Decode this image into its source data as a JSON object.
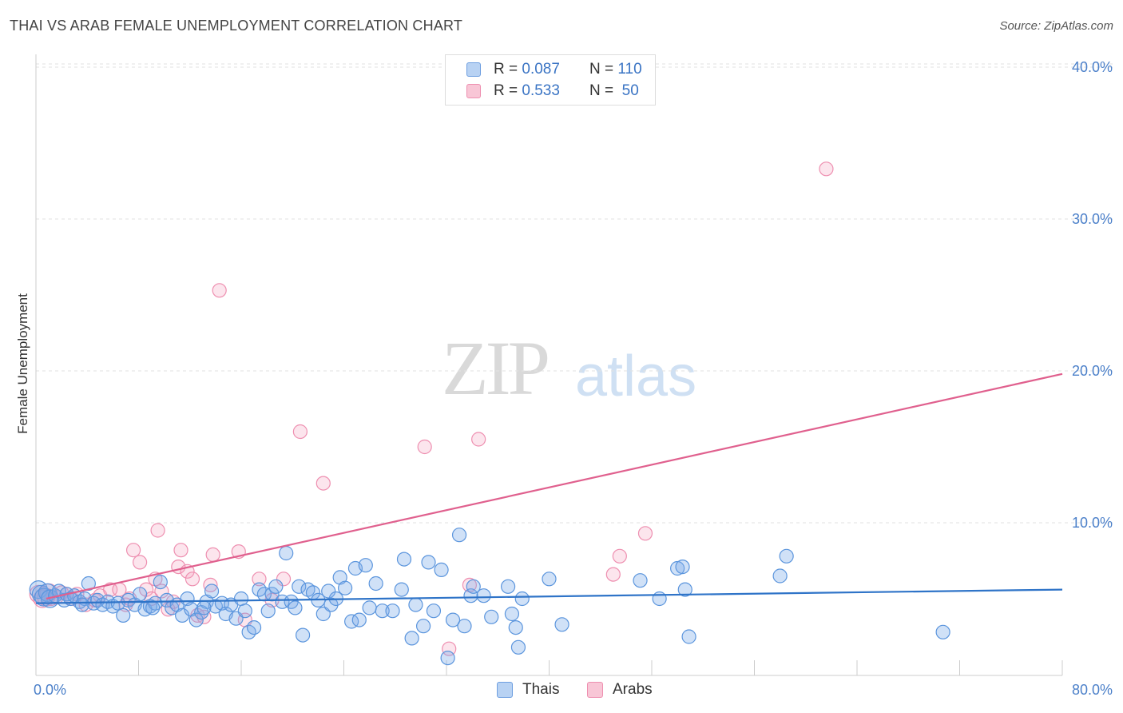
{
  "header": {
    "title": "THAI VS ARAB FEMALE UNEMPLOYMENT CORRELATION CHART",
    "source": "Source: ZipAtlas.com"
  },
  "legend": {
    "thais": {
      "r_label": "R =",
      "r_value": "0.087",
      "n_label": "N =",
      "n_value": "110"
    },
    "arabs": {
      "r_label": "R =",
      "r_value": "0.533",
      "n_label": "N =",
      "n_value": "50"
    }
  },
  "bottom_legend": {
    "thais": "Thais",
    "arabs": "Arabs"
  },
  "watermark": {
    "zip": "ZIP",
    "atlas": "atlas"
  },
  "colors": {
    "thais": "#5b95dd",
    "thais_line": "#2f74c8",
    "arabs": "#ee8fb0",
    "arabs_line": "#e0608e",
    "axis_text": "#4a7fc9"
  },
  "chart_data": {
    "type": "scatter",
    "title": "THAI VS ARAB FEMALE UNEMPLOYMENT CORRELATION CHART",
    "xlabel": "",
    "ylabel": "Female Unemployment",
    "xlim": [
      0,
      80
    ],
    "ylim": [
      0,
      42
    ],
    "x_tick_labels": [
      "0.0%",
      "80.0%"
    ],
    "y_ticks": [
      10,
      20,
      30,
      40
    ],
    "y_tick_labels": [
      "10.0%",
      "20.0%",
      "30.0%",
      "40.0%"
    ],
    "grid": true,
    "legend_position": "top-center",
    "series": [
      {
        "name": "Thais",
        "trend": [
          [
            0,
            4.7
          ],
          [
            80,
            5.6
          ]
        ],
        "points": [
          [
            0.2,
            5.6
          ],
          [
            0.4,
            5.3
          ],
          [
            0.6,
            5.1
          ],
          [
            0.9,
            5.4
          ],
          [
            1.1,
            5.0
          ],
          [
            1.5,
            5.2
          ],
          [
            1.8,
            5.5
          ],
          [
            2.2,
            4.9
          ],
          [
            2.4,
            5.3
          ],
          [
            2.7,
            5.0
          ],
          [
            3.0,
            5.2
          ],
          [
            3.4,
            4.8
          ],
          [
            3.8,
            5.0
          ],
          [
            4.1,
            6.0
          ],
          [
            4.5,
            4.7
          ],
          [
            4.8,
            4.9
          ],
          [
            5.2,
            4.6
          ],
          [
            5.6,
            4.8
          ],
          [
            6.0,
            4.5
          ],
          [
            6.4,
            4.7
          ],
          [
            6.8,
            3.9
          ],
          [
            7.2,
            4.9
          ],
          [
            7.7,
            4.6
          ],
          [
            8.1,
            5.3
          ],
          [
            8.5,
            4.3
          ],
          [
            8.9,
            4.5
          ],
          [
            9.3,
            4.7
          ],
          [
            9.7,
            6.1
          ],
          [
            10.2,
            4.9
          ],
          [
            10.6,
            4.4
          ],
          [
            11.0,
            4.6
          ],
          [
            11.4,
            3.9
          ],
          [
            11.8,
            5.0
          ],
          [
            12.1,
            4.3
          ],
          [
            12.5,
            3.6
          ],
          [
            12.9,
            4.1
          ],
          [
            13.3,
            4.8
          ],
          [
            13.7,
            5.5
          ],
          [
            14.0,
            4.5
          ],
          [
            14.5,
            4.7
          ],
          [
            14.8,
            4.0
          ],
          [
            15.2,
            4.6
          ],
          [
            15.6,
            3.7
          ],
          [
            16.0,
            5.0
          ],
          [
            16.3,
            4.2
          ],
          [
            16.6,
            2.8
          ],
          [
            17.0,
            3.1
          ],
          [
            17.4,
            5.6
          ],
          [
            17.8,
            5.3
          ],
          [
            18.1,
            4.2
          ],
          [
            18.4,
            5.3
          ],
          [
            18.7,
            5.8
          ],
          [
            19.2,
            4.8
          ],
          [
            19.5,
            8.0
          ],
          [
            19.9,
            4.8
          ],
          [
            20.2,
            4.4
          ],
          [
            20.5,
            5.8
          ],
          [
            20.8,
            2.6
          ],
          [
            21.2,
            5.6
          ],
          [
            21.6,
            5.4
          ],
          [
            22.0,
            4.9
          ],
          [
            22.4,
            4.0
          ],
          [
            22.8,
            5.5
          ],
          [
            23.0,
            4.6
          ],
          [
            23.4,
            5.0
          ],
          [
            23.7,
            6.4
          ],
          [
            24.1,
            5.7
          ],
          [
            24.6,
            3.5
          ],
          [
            24.9,
            7.0
          ],
          [
            25.2,
            3.6
          ],
          [
            25.7,
            7.2
          ],
          [
            26.5,
            6.0
          ],
          [
            27.0,
            4.2
          ],
          [
            27.8,
            4.2
          ],
          [
            28.5,
            5.6
          ],
          [
            28.7,
            7.6
          ],
          [
            29.3,
            2.4
          ],
          [
            29.6,
            4.6
          ],
          [
            30.2,
            3.2
          ],
          [
            30.6,
            7.4
          ],
          [
            31.0,
            4.2
          ],
          [
            31.6,
            6.9
          ],
          [
            32.1,
            1.1
          ],
          [
            32.5,
            3.6
          ],
          [
            33.0,
            9.2
          ],
          [
            33.4,
            3.2
          ],
          [
            33.9,
            5.2
          ],
          [
            34.1,
            5.8
          ],
          [
            34.9,
            5.2
          ],
          [
            35.5,
            3.8
          ],
          [
            36.8,
            5.8
          ],
          [
            37.1,
            4.0
          ],
          [
            37.4,
            3.1
          ],
          [
            37.6,
            1.8
          ],
          [
            37.9,
            5.0
          ],
          [
            40.0,
            6.3
          ],
          [
            41.0,
            3.3
          ],
          [
            47.1,
            6.2
          ],
          [
            48.6,
            5.0
          ],
          [
            50.0,
            7.0
          ],
          [
            50.4,
            7.1
          ],
          [
            50.6,
            5.6
          ],
          [
            50.9,
            2.5
          ],
          [
            58.0,
            6.5
          ],
          [
            58.5,
            7.8
          ],
          [
            70.7,
            2.8
          ],
          [
            3.6,
            4.6
          ],
          [
            9.1,
            4.4
          ],
          [
            13.1,
            4.4
          ],
          [
            26.0,
            4.4
          ]
        ]
      },
      {
        "name": "Arabs",
        "trend": [
          [
            0.8,
            5.0
          ],
          [
            80,
            19.8
          ]
        ],
        "points": [
          [
            0.2,
            5.3
          ],
          [
            0.5,
            5.0
          ],
          [
            0.8,
            5.1
          ],
          [
            1.0,
            5.4
          ],
          [
            1.2,
            5.0
          ],
          [
            1.6,
            5.1
          ],
          [
            2.0,
            5.4
          ],
          [
            2.4,
            5.3
          ],
          [
            2.8,
            5.0
          ],
          [
            3.2,
            5.3
          ],
          [
            3.9,
            4.6
          ],
          [
            4.6,
            4.9
          ],
          [
            5.0,
            5.2
          ],
          [
            5.8,
            5.6
          ],
          [
            6.5,
            5.6
          ],
          [
            7.0,
            4.6
          ],
          [
            7.3,
            5.0
          ],
          [
            7.6,
            8.2
          ],
          [
            8.1,
            7.4
          ],
          [
            8.6,
            5.6
          ],
          [
            9.0,
            5.0
          ],
          [
            9.3,
            6.3
          ],
          [
            9.5,
            9.5
          ],
          [
            9.8,
            5.5
          ],
          [
            10.3,
            4.3
          ],
          [
            10.7,
            4.8
          ],
          [
            11.1,
            7.1
          ],
          [
            11.3,
            8.2
          ],
          [
            11.8,
            6.8
          ],
          [
            12.2,
            6.3
          ],
          [
            12.6,
            3.9
          ],
          [
            13.1,
            3.8
          ],
          [
            13.6,
            5.9
          ],
          [
            13.8,
            7.9
          ],
          [
            14.3,
            25.3
          ],
          [
            15.8,
            8.1
          ],
          [
            16.3,
            3.6
          ],
          [
            17.4,
            6.3
          ],
          [
            18.4,
            4.9
          ],
          [
            19.3,
            6.3
          ],
          [
            20.6,
            16.0
          ],
          [
            22.4,
            12.6
          ],
          [
            30.3,
            15.0
          ],
          [
            32.2,
            1.7
          ],
          [
            33.8,
            5.9
          ],
          [
            34.5,
            15.5
          ],
          [
            45.0,
            6.6
          ],
          [
            45.5,
            7.8
          ],
          [
            47.5,
            9.3
          ],
          [
            61.6,
            33.3
          ]
        ]
      }
    ]
  }
}
